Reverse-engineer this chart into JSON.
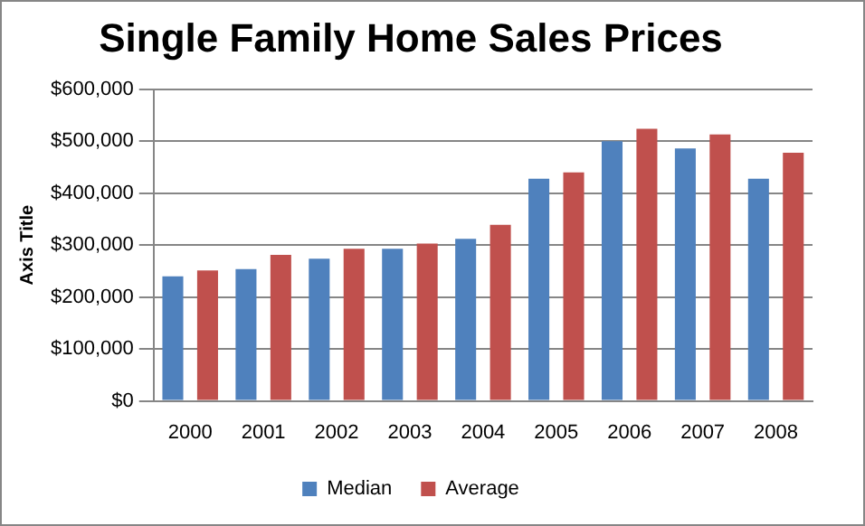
{
  "chart_data": {
    "type": "bar",
    "title": "Single Family Home Sales Prices",
    "ylabel": "Axis Title",
    "categories": [
      "2000",
      "2001",
      "2002",
      "2003",
      "2004",
      "2005",
      "2006",
      "2007",
      "2008"
    ],
    "series": [
      {
        "name": "Median",
        "color": "#4f81bd",
        "values": [
          240000,
          254000,
          274000,
          293000,
          312000,
          428000,
          500000,
          486000,
          428000
        ]
      },
      {
        "name": "Average",
        "color": "#c0504d",
        "values": [
          251000,
          281000,
          293000,
          303000,
          339000,
          440000,
          524000,
          513000,
          478000
        ]
      }
    ],
    "ylim": [
      0,
      600000
    ],
    "yticks": [
      {
        "value": 0,
        "label": "$0"
      },
      {
        "value": 100000,
        "label": "$100,000"
      },
      {
        "value": 200000,
        "label": "$200,000"
      },
      {
        "value": 300000,
        "label": "$300,000"
      },
      {
        "value": 400000,
        "label": "$400,000"
      },
      {
        "value": 500000,
        "label": "$500,000"
      },
      {
        "value": 600000,
        "label": "$600,000"
      }
    ],
    "grid": "y",
    "legend": "bottom"
  }
}
